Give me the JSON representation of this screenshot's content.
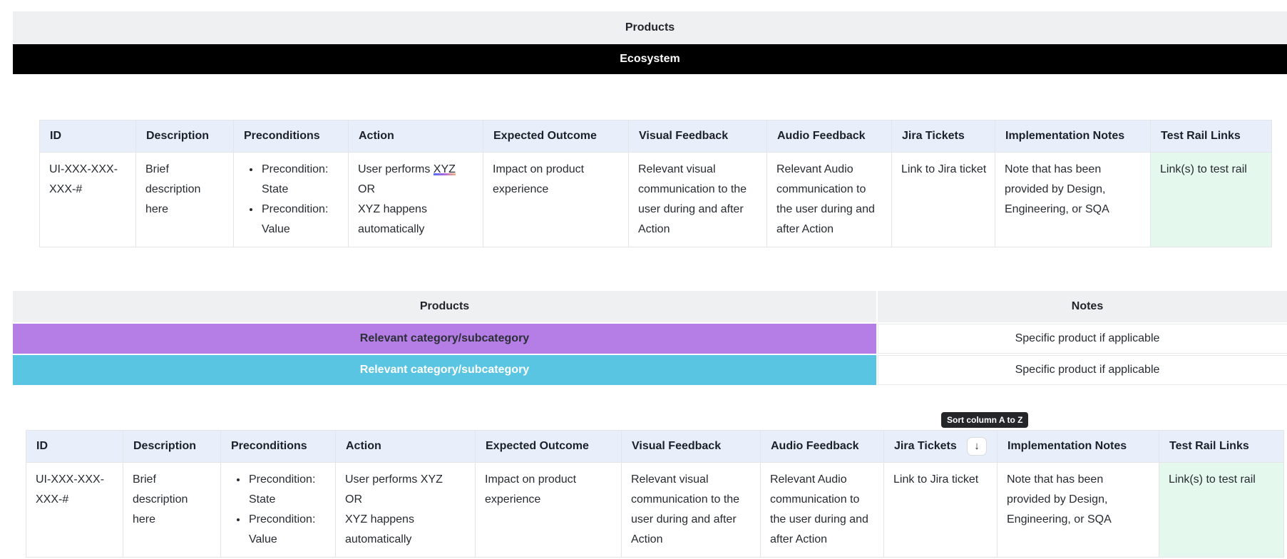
{
  "top_banners": {
    "products_label": "Products",
    "ecosystem_label": "Ecosystem",
    "products_bg": "#eef0f2",
    "ecosystem_bg": "#000000"
  },
  "spec_columns": [
    "ID",
    "Description",
    "Preconditions",
    "Action",
    "Expected Outcome",
    "Visual Feedback",
    "Audio Feedback",
    "Jira Tickets",
    "Implementation Notes",
    "Test Rail Links"
  ],
  "spec_row": {
    "id": "UI-XXX-XXX-XXX-#",
    "description": "Brief description here",
    "preconditions": [
      "Precondition: State",
      "Precondition: Value"
    ],
    "action_prefix": "User performs ",
    "action_link_text": "XYZ",
    "action_or": "OR",
    "action_alt": "XYZ happens automatically",
    "expected_outcome": "Impact on product experience",
    "visual_feedback": "Relevant visual communication to the user during and after Action",
    "audio_feedback": "Relevant Audio communication to the user during and after Action",
    "jira_tickets": "Link to Jira ticket",
    "implementation_notes": "Note that has been provided by Design, Engineering, or SQA",
    "test_rail_links": "Link(s) to test rail",
    "test_rail_bg": "#e4f8ed"
  },
  "category_table": {
    "products_header": "Products",
    "notes_header": "Notes",
    "rows": [
      {
        "category": "Relevant category/subcategory",
        "note": "Specific product if applicable",
        "bg": "#b57ee6",
        "text_color": "#2b2f36"
      },
      {
        "category": "Relevant category/subcategory",
        "note": "Specific product if applicable",
        "bg": "#5ac5e2",
        "text_color": "#ffffff"
      }
    ]
  },
  "sort": {
    "tooltip_label": "Sort column A to Z",
    "icon": "↓",
    "tooltip_bg": "#24262a"
  },
  "theme": {
    "spec_header_bg": "#e9eefb",
    "table_border": "#e3e5e9",
    "link_underline_gradient": [
      "#4b6cf5",
      "#b06ae0",
      "#f5b27e"
    ]
  }
}
